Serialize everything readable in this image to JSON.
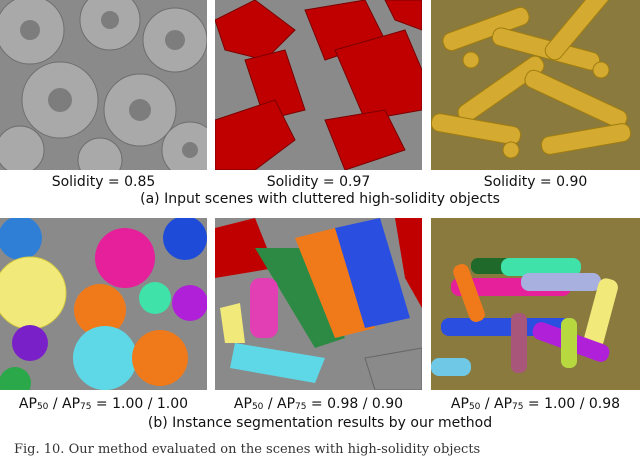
{
  "top_row": {
    "captions": [
      "Solidity = 0.85",
      "Solidity = 0.97",
      "Solidity = 0.90"
    ],
    "row_caption": "(a) Input scenes with cluttered high-solidity objects"
  },
  "bottom_row": {
    "captions": [
      {
        "a": "AP",
        "a_sub": "50",
        "sep": " / AP",
        "b_sub": "75",
        "val": " = 1.00 / 1.00"
      },
      {
        "a": "AP",
        "a_sub": "50",
        "sep": " / AP",
        "b_sub": "75",
        "val": " = 0.98 / 0.90"
      },
      {
        "a": "AP",
        "a_sub": "50",
        "sep": " / AP",
        "b_sub": "75",
        "val": " = 1.00 / 0.98"
      }
    ],
    "row_caption": "(b) Instance segmentation results by our method"
  },
  "figure_caption": "Fig. 10.   Our method evaluated on the scenes with high-solidity objects"
}
